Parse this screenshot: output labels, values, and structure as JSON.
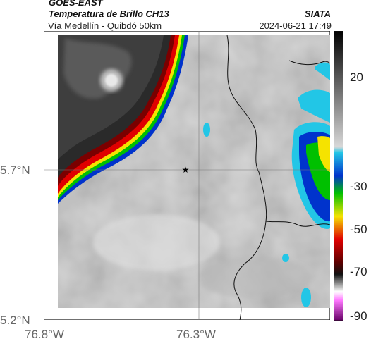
{
  "header": {
    "satellite": "GOES-EAST",
    "product": "Temperatura de Brillo CH13",
    "region": "Vía Medellín - Quibdó 50km",
    "agency": "SIATA",
    "datetime": "2024-06-21 17:49"
  },
  "axes": {
    "x_ticks": [
      "76.8°W",
      "76.3°W"
    ],
    "y_ticks": [
      "5.7°N",
      "5.2°N"
    ]
  },
  "colorbar": {
    "ticks": [
      "20",
      "-30",
      "-50",
      "-70",
      "-90"
    ],
    "ticks_value": [
      20,
      -30,
      -50,
      -70,
      -90
    ]
  },
  "map": {
    "marker": "star-marker",
    "colors": {
      "cold_dark": "#1a1a1a",
      "warm_gray": "#cfcfcf",
      "red": "#e00000",
      "yellow": "#f5e300",
      "green": "#00c000",
      "blue": "#0033cc",
      "cyan": "#22c6e6"
    }
  }
}
